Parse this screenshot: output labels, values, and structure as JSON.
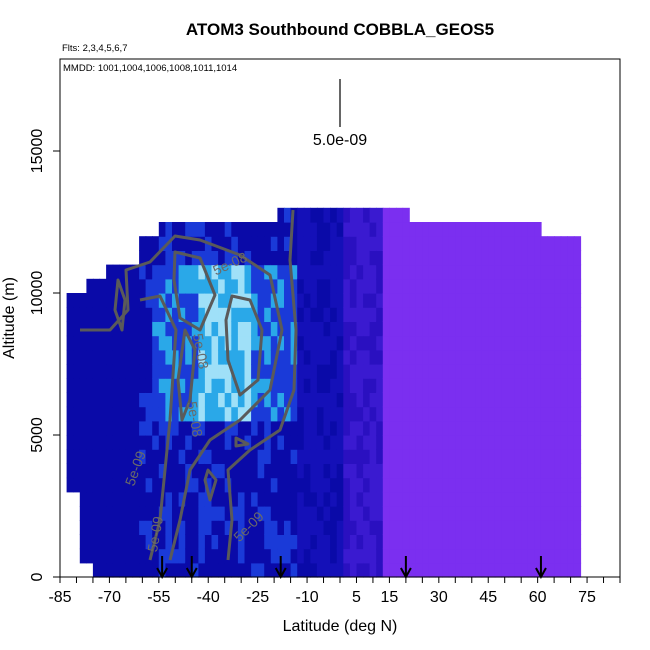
{
  "chart_data": {
    "type": "heatmap",
    "title": "ATOM3 Southbound COBBLA_GEOS5",
    "subtitle_flights": "Flts: 2,3,4,5,6,7",
    "subtitle_dates": "MMDD: 1001,1004,1006,1008,1011,1014",
    "xlabel": "Latitude (deg N)",
    "ylabel": "Altitude (m)",
    "xlim": [
      -85,
      85
    ],
    "ylim": [
      0,
      17500
    ],
    "x_ticks": [
      -85,
      -70,
      -55,
      -40,
      -25,
      -10,
      5,
      15,
      30,
      45,
      60,
      75
    ],
    "y_ticks": [
      0,
      5000,
      10000,
      15000
    ],
    "legend_value_label": "5.0e-09",
    "contour_labels": [
      "5e-08",
      "5e-09",
      "5e-09",
      "5e-09",
      "5e-08",
      "5e-08"
    ],
    "flight_marker_latitudes": [
      -54,
      -45,
      -18,
      20,
      61
    ],
    "colors": {
      "purple": "#7b2ff0",
      "dark_blue": "#0a0aa8",
      "blue": "#1a3ad8",
      "cyan": "#2aa8e8",
      "light_cyan": "#9fe0f8",
      "contour": "#5a5a5a"
    }
  }
}
